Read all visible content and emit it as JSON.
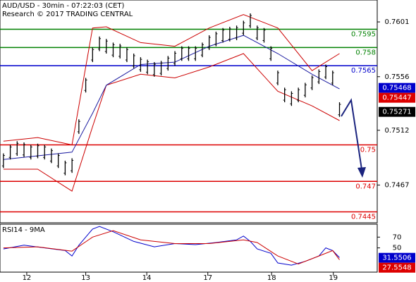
{
  "chart_data": [
    {
      "type": "hilo",
      "title": "AUD/USD - 30min - 07:22:03 (CET)",
      "subtitle": "Research © 2017 TRADING CENTRAL",
      "color": "#000000",
      "xlim": [
        -0.5,
        54.5
      ],
      "xticks": [
        {
          "value": 3.4,
          "label": "12"
        },
        {
          "value": 12,
          "label": "13"
        },
        {
          "value": 20.9,
          "label": "14"
        },
        {
          "value": 29.8,
          "label": "17"
        },
        {
          "value": 39.1,
          "label": "18"
        },
        {
          "value": 48.1,
          "label": "19"
        }
      ],
      "ylim": [
        0.7436,
        0.7619
      ],
      "yticks": [
        0.7601,
        0.7556,
        0.7512,
        0.7467
      ],
      "high": [
        0.7493,
        0.75,
        0.7503,
        0.7502,
        0.75,
        0.7501,
        0.75,
        0.7497,
        0.7493,
        0.7487,
        0.7489,
        0.7521,
        0.7555,
        0.758,
        0.7589,
        0.7587,
        0.7584,
        0.7583,
        0.758,
        0.7575,
        0.7572,
        0.757,
        0.7568,
        0.7569,
        0.7573,
        0.7577,
        0.7581,
        0.7581,
        0.7581,
        0.7584,
        0.759,
        0.7593,
        0.7596,
        0.7597,
        0.7598,
        0.7602,
        0.7608,
        0.7598,
        0.7596,
        0.7581,
        0.7561,
        0.7547,
        0.7544,
        0.7547,
        0.7551,
        0.7557,
        0.7562,
        0.7566,
        0.7561,
        0.7535
      ],
      "low": [
        0.7481,
        0.7488,
        0.7491,
        0.749,
        0.7488,
        0.7489,
        0.7488,
        0.7485,
        0.7481,
        0.7475,
        0.7477,
        0.7509,
        0.7543,
        0.7568,
        0.7577,
        0.7575,
        0.7572,
        0.7571,
        0.7568,
        0.7563,
        0.756,
        0.7558,
        0.7556,
        0.7557,
        0.7561,
        0.7565,
        0.7569,
        0.7569,
        0.7569,
        0.7572,
        0.7578,
        0.7581,
        0.7584,
        0.7585,
        0.7586,
        0.759,
        0.7596,
        0.7586,
        0.7584,
        0.7569,
        0.7549,
        0.7535,
        0.7532,
        0.7535,
        0.7539,
        0.7545,
        0.755,
        0.7554,
        0.7549,
        0.7523
      ],
      "overlays": [
        {
          "color": "#cc0000",
          "x": [
            0,
            5,
            10,
            13,
            15,
            20,
            25,
            30,
            35,
            40,
            45,
            49
          ],
          "values": [
            0.7503,
            0.7506,
            0.75,
            0.7596,
            0.7597,
            0.7584,
            0.7581,
            0.7596,
            0.7607,
            0.7596,
            0.7561,
            0.7575
          ]
        },
        {
          "color": "#cc0000",
          "x": [
            0,
            5,
            10,
            13,
            15,
            20,
            25,
            30,
            35,
            40,
            45,
            49
          ],
          "values": [
            0.748,
            0.748,
            0.7462,
            0.7515,
            0.7549,
            0.7558,
            0.7555,
            0.7564,
            0.7575,
            0.7544,
            0.7532,
            0.752
          ]
        },
        {
          "color": "#1a1aa0",
          "x": [
            0,
            5,
            10,
            13,
            15,
            20,
            25,
            30,
            35,
            40,
            45,
            49
          ],
          "values": [
            0.7488,
            0.7491,
            0.7494,
            0.7526,
            0.7549,
            0.7566,
            0.7568,
            0.7581,
            0.759,
            0.7575,
            0.7558,
            0.7546
          ]
        }
      ],
      "levels": {
        "values": [
          0.7595,
          0.758,
          0.7565,
          0.75,
          0.747,
          0.7445
        ],
        "colors": [
          "#008000",
          "#008000",
          "#0000cc",
          "#dd0000",
          "#dd0000",
          "#dd0000"
        ]
      },
      "price_tags": {
        "values": [
          0.75468,
          0.75447,
          0.75271
        ],
        "colors": [
          "#0000cc",
          "#dd0000",
          "#000000"
        ]
      }
    },
    {
      "type": "line",
      "title": "RSI14 - 9MA",
      "xlim": [
        -0.5,
        54.5
      ],
      "ylim": [
        5,
        94
      ],
      "yticks": [
        70,
        50
      ],
      "series": [
        {
          "color": "#0000cc",
          "x": [
            0,
            3,
            6,
            9,
            10,
            11,
            12,
            13,
            14,
            16,
            19,
            22,
            25,
            28,
            31,
            34,
            35,
            36,
            37,
            39,
            40,
            42,
            44,
            46,
            47,
            48,
            49
          ],
          "values": [
            48,
            55,
            50,
            45,
            35,
            55,
            70,
            85,
            90,
            80,
            62,
            52,
            58,
            56,
            60,
            65,
            72,
            62,
            48,
            40,
            22,
            18,
            25,
            35,
            50,
            45,
            32
          ]
        },
        {
          "color": "#cc0000",
          "x": [
            0,
            5,
            10,
            13,
            16,
            20,
            25,
            30,
            35,
            37,
            40,
            43,
            46,
            48,
            49
          ],
          "values": [
            50,
            52,
            44,
            70,
            82,
            65,
            58,
            58,
            65,
            60,
            35,
            20,
            35,
            45,
            28
          ]
        }
      ],
      "price_tags": {
        "values": [
          31.5506,
          27.5548
        ],
        "colors": [
          "#0000cc",
          "#dd0000"
        ]
      }
    }
  ]
}
